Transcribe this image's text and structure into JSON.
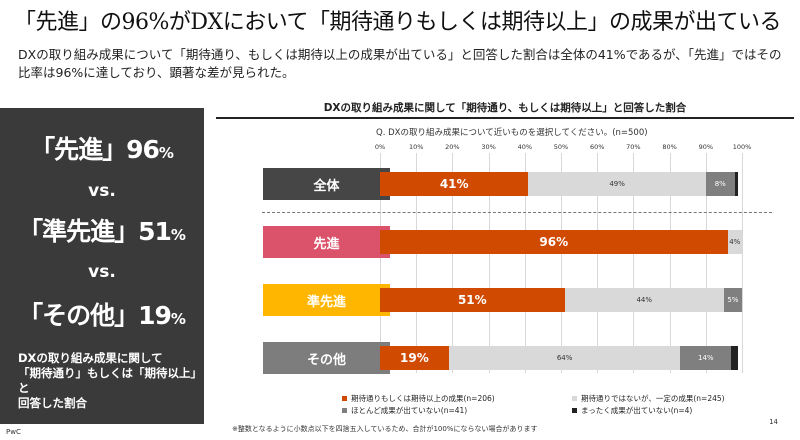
{
  "title": "「先進」の96%がDXにおいて「期待通りもしくは期待以上」の成果が出ている",
  "subtitle": "DXの取り組み成果について「期待通り、もしくは期待以上の成果が出ている」と回答した割合は全体の41%であるが、「先進」ではその比率は96%に達しており、顕著な差が見られた。",
  "left_panel": {
    "row1": {
      "label": "「先進」96",
      "pct": "%"
    },
    "vs1": "vs.",
    "row2": {
      "label": "「準先進」51",
      "pct": "%"
    },
    "vs2": "vs.",
    "row3": {
      "label": "「その他」19",
      "pct": "%"
    },
    "note_line1": "DXの取り組み成果に関して",
    "note_line2": "「期待通り」もしくは「期待以上」と",
    "note_line3": "回答した割合"
  },
  "colors": {
    "dark_panel": "#3a3a3a",
    "orange": "#d04a02",
    "light_gray": "#d9d9d9",
    "mid_gray": "#7f7f7f",
    "dark": "#222222",
    "cat_all": "#464646",
    "cat_advanced": "#db536a",
    "cat_semi": "#ffb600",
    "cat_other": "#7d7d7d"
  },
  "chart_data": {
    "type": "bar",
    "orientation": "horizontal",
    "stacked": true,
    "title": "DXの取り組み成果に関して「期待通り、もしくは期待以上」と回答した割合",
    "question": "Q. DXの取り組み成果について近いものを選択してください。(n=500)",
    "xlim": [
      0,
      100
    ],
    "x_ticks": [
      "0%",
      "10%",
      "20%",
      "30%",
      "40%",
      "50%",
      "60%",
      "70%",
      "80%",
      "90%",
      "100%"
    ],
    "categories": [
      "全体",
      "先進",
      "準先進",
      "その他"
    ],
    "series": [
      {
        "name": "期待通りもしくは期待以上の成果(n=206)",
        "color": "#d04a02",
        "values": [
          41,
          96,
          51,
          19
        ],
        "labels": [
          "41%",
          "96%",
          "51%",
          "19%"
        ]
      },
      {
        "name": "期待通りではないが、一定の成果(n=245)",
        "color": "#d9d9d9",
        "values": [
          49,
          4,
          44,
          64
        ],
        "labels": [
          "49%",
          "4%",
          "44%",
          "64%"
        ]
      },
      {
        "name": "ほとんど成果が出ていない(n=41)",
        "color": "#7f7f7f",
        "values": [
          8,
          0,
          5,
          14
        ],
        "labels": [
          "8%",
          "",
          "5%",
          "14%"
        ]
      },
      {
        "name": "まったく成果が出ていない(n=4)",
        "color": "#222222",
        "values": [
          1,
          0,
          0,
          2
        ],
        "labels": [
          "",
          "",
          "",
          ""
        ]
      }
    ]
  },
  "footnote": "※整数となるように小数点以下を四捨五入しているため、合計が100%にならない場合があります",
  "brand": "PwC",
  "page_number": "14"
}
